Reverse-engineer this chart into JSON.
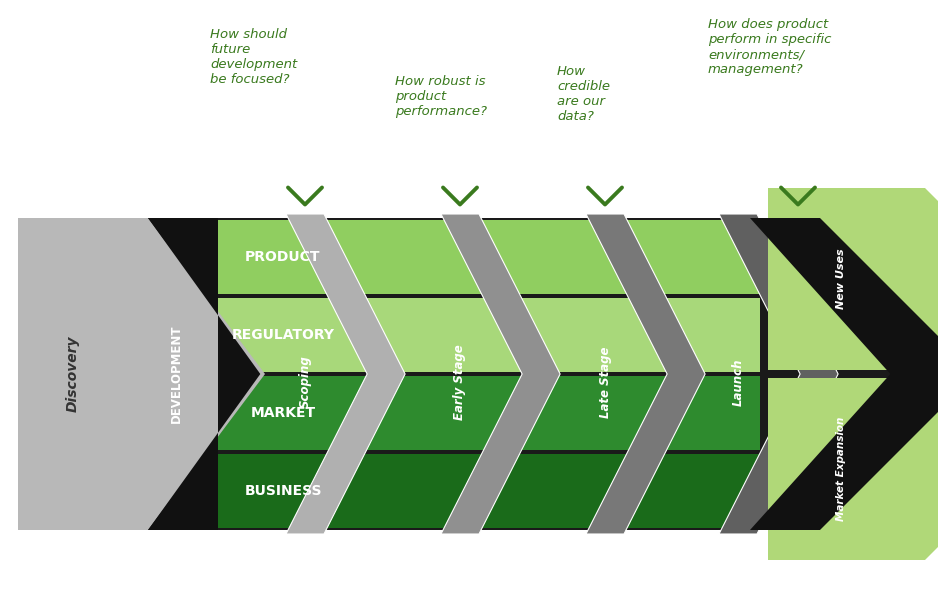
{
  "bg_color": "#ffffff",
  "black": "#1a1a1a",
  "gray_discovery": "#b8b8b8",
  "gray_dev": "#2a2a2a",
  "row_colors_top_to_bottom": [
    "#90ce60",
    "#a8d87a",
    "#2e8b2e",
    "#1a6b1a"
  ],
  "row_labels": [
    "PRODUCT",
    "REGULATORY",
    "MARKET",
    "BUSINESS"
  ],
  "stage_labels": [
    "Scoping",
    "Early Stage",
    "Late Stage",
    "Launch"
  ],
  "sep_colors": [
    "#b0b0b0",
    "#909090",
    "#787878",
    "#606060"
  ],
  "green_tip": "#b0d878",
  "green_text": "#3a7a1e",
  "white": "#ffffff",
  "question_texts": [
    "How should\nfuture\ndevelopment\nbe focused?",
    "How robust is\nproduct\nperformance?",
    "How\ncredible\nare our\ndata?",
    "How does product\nperform in specific\nenvironments/\nmanagement?"
  ]
}
